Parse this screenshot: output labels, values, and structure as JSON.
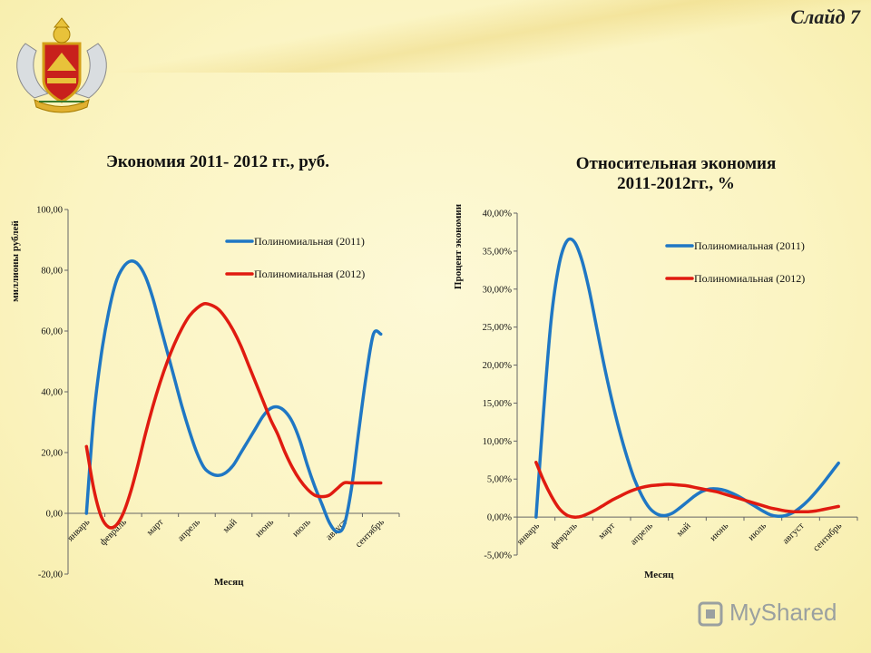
{
  "slide_label": "Слайд 7",
  "watermark_text": "MyShared",
  "colors": {
    "series_2011": "#1f77c4",
    "series_2012": "#e01b10",
    "background": "#fbf5c4"
  },
  "chart_data": [
    {
      "type": "line",
      "title": "Экономия 2011- 2012 гг., руб.",
      "xlabel": "Месяц",
      "ylabel": "миллионы рублей",
      "categories": [
        "январь",
        "февраль",
        "март",
        "апрель",
        "май",
        "июнь",
        "июль",
        "август",
        "сентябрь"
      ],
      "ylim": [
        -20,
        100
      ],
      "yticks": [
        "-20,00",
        "0,00",
        "20,00",
        "40,00",
        "60,00",
        "80,00",
        "100,00"
      ],
      "legend_position": "top-right",
      "grid": false,
      "series": [
        {
          "name": "Полиномиальная (2011)",
          "x": [
            0,
            0.2,
            0.4,
            0.6,
            0.8,
            1.0,
            1.2,
            1.4,
            1.6,
            1.8,
            2.0,
            2.2,
            2.4,
            2.6,
            2.8,
            3.0,
            3.2,
            3.4,
            3.6,
            3.8,
            4.0,
            4.2,
            4.4,
            4.6,
            4.8,
            5.0,
            5.2,
            5.4,
            5.6,
            5.8,
            6.0,
            6.2,
            6.4,
            6.6,
            6.8,
            7.0,
            7.2,
            7.4,
            7.6,
            7.8,
            8.0
          ],
          "values": [
            0,
            32,
            52,
            66,
            76,
            81,
            83,
            82,
            78,
            71,
            62,
            53,
            44,
            35,
            27,
            20,
            15,
            13,
            12.5,
            13.5,
            16,
            20,
            24,
            28,
            32,
            34.5,
            35,
            33.5,
            30,
            24,
            16,
            9,
            3,
            -3,
            -6,
            -4,
            8,
            27,
            45,
            59,
            59
          ]
        },
        {
          "name": "Полиномиальная (2012)",
          "x": [
            0,
            0.2,
            0.4,
            0.6,
            0.8,
            1.0,
            1.2,
            1.4,
            1.6,
            1.8,
            2.0,
            2.2,
            2.4,
            2.6,
            2.8,
            3.0,
            3.2,
            3.4,
            3.6,
            3.8,
            4.0,
            4.2,
            4.4,
            4.6,
            4.8,
            5.0,
            5.2,
            5.4,
            5.6,
            5.8,
            6.0,
            6.2,
            6.4,
            6.6,
            6.8,
            7.0,
            7.2,
            7.4,
            7.6,
            7.8,
            8.0
          ],
          "values": [
            22,
            8,
            -1,
            -4.5,
            -4,
            0,
            7,
            16,
            26,
            35,
            43,
            50,
            56,
            61,
            65,
            67.5,
            69,
            68.5,
            67,
            64,
            60,
            55,
            49,
            43,
            37,
            31,
            26,
            20,
            15,
            11,
            8,
            6,
            5.5,
            6,
            8,
            10,
            10,
            10,
            10,
            10,
            10
          ]
        }
      ]
    },
    {
      "type": "line",
      "title": "Относительная экономия",
      "subtitle": "2011-2012гг., %",
      "xlabel": "Месяц",
      "ylabel": "Процент экономии",
      "categories": [
        "январь",
        "февраль",
        "март",
        "апрель",
        "май",
        "июнь",
        "июль",
        "август",
        "сентябрь"
      ],
      "ylim": [
        -5,
        40
      ],
      "yticks": [
        "-5,00%",
        "0,00%",
        "5,00%",
        "10,00%",
        "15,00%",
        "20,00%",
        "25,00%",
        "30,00%",
        "35,00%",
        "40,00%"
      ],
      "legend_position": "top-right",
      "grid": false,
      "series": [
        {
          "name": "Полиномиальная (2011)",
          "x": [
            0,
            0.2,
            0.4,
            0.6,
            0.8,
            1.0,
            1.2,
            1.4,
            1.6,
            1.8,
            2.0,
            2.2,
            2.4,
            2.6,
            2.8,
            3.0,
            3.2,
            3.4,
            3.6,
            3.8,
            4.0,
            4.2,
            4.4,
            4.6,
            4.8,
            5.0,
            5.2,
            5.4,
            5.6,
            5.8,
            6.0,
            6.2,
            6.4,
            6.6,
            6.8,
            7.0,
            7.2,
            7.4,
            7.6,
            7.8,
            8.0
          ],
          "values": [
            0,
            14,
            26,
            33,
            36.2,
            36.3,
            34,
            30,
            25,
            20,
            15.5,
            11.5,
            8,
            5,
            2.8,
            1.2,
            0.4,
            0.2,
            0.5,
            1.2,
            2,
            2.8,
            3.4,
            3.7,
            3.7,
            3.5,
            3.1,
            2.6,
            2,
            1.4,
            0.8,
            0.3,
            0.1,
            0.2,
            0.6,
            1.3,
            2.2,
            3.3,
            4.5,
            5.8,
            7.1
          ]
        },
        {
          "name": "Полиномиальная (2012)",
          "x": [
            0,
            0.2,
            0.4,
            0.6,
            0.8,
            1.0,
            1.2,
            1.4,
            1.6,
            1.8,
            2.0,
            2.2,
            2.4,
            2.6,
            2.8,
            3.0,
            3.2,
            3.4,
            3.6,
            3.8,
            4.0,
            4.2,
            4.4,
            4.6,
            4.8,
            5.0,
            5.2,
            5.4,
            5.6,
            5.8,
            6.0,
            6.2,
            6.4,
            6.6,
            6.8,
            7.0,
            7.2,
            7.4,
            7.6,
            7.8,
            8.0
          ],
          "values": [
            7.2,
            4.8,
            2.8,
            1.2,
            0.3,
            0,
            0.1,
            0.5,
            1,
            1.6,
            2.2,
            2.7,
            3.2,
            3.6,
            3.9,
            4.1,
            4.2,
            4.3,
            4.3,
            4.2,
            4.1,
            3.9,
            3.7,
            3.5,
            3.3,
            3,
            2.7,
            2.4,
            2.1,
            1.8,
            1.5,
            1.2,
            1,
            0.8,
            0.7,
            0.7,
            0.7,
            0.8,
            1,
            1.2,
            1.4
          ]
        }
      ]
    }
  ]
}
